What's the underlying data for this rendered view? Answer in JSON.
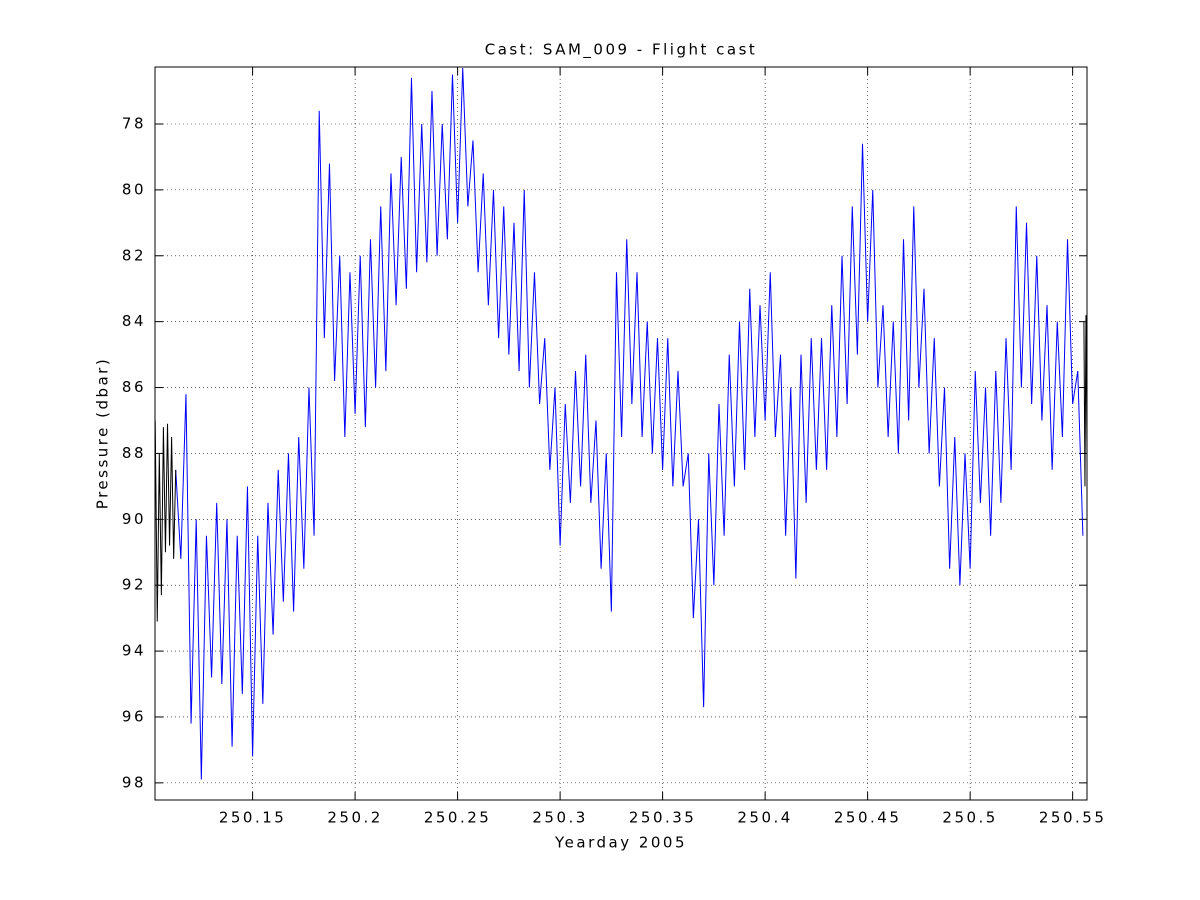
{
  "chart_data": {
    "type": "line",
    "title": "Cast: SAM_009 - Flight cast",
    "x_label": "Yearday 2005",
    "y_label": "Pressure (dbar)",
    "xlim": [
      250.1024,
      250.557
    ],
    "ylim": [
      76.27,
      98.52
    ],
    "y_reversed": true,
    "grid": true,
    "xticks": [
      250.15,
      250.2,
      250.25,
      250.3,
      250.35,
      250.4,
      250.45,
      250.5,
      250.55
    ],
    "yticks": [
      78,
      80,
      82,
      84,
      86,
      88,
      90,
      92,
      94,
      96,
      98
    ],
    "series": [
      {
        "color": "#0000ff",
        "x": [
          250.1125,
          250.115,
          250.1175,
          250.12,
          250.1225,
          250.125,
          250.1275,
          250.13,
          250.1325,
          250.135,
          250.1375,
          250.14,
          250.1425,
          250.145,
          250.1475,
          250.15,
          250.1525,
          250.155,
          250.1575,
          250.16,
          250.1625,
          250.165,
          250.1675,
          250.17,
          250.1725,
          250.175,
          250.1775,
          250.18,
          250.1825,
          250.185,
          250.1875,
          250.19,
          250.1925,
          250.195,
          250.1975,
          250.2,
          250.2025,
          250.205,
          250.2075,
          250.21,
          250.2125,
          250.215,
          250.2175,
          250.22,
          250.2225,
          250.225,
          250.2275,
          250.23,
          250.2325,
          250.235,
          250.2375,
          250.24,
          250.2425,
          250.245,
          250.2475,
          250.25,
          250.2525,
          250.255,
          250.2575,
          250.26,
          250.2625,
          250.265,
          250.2675,
          250.27,
          250.2725,
          250.275,
          250.2775,
          250.28,
          250.2825,
          250.285,
          250.2875,
          250.29,
          250.2925,
          250.295,
          250.2975,
          250.3,
          250.3025,
          250.305,
          250.3075,
          250.31,
          250.3125,
          250.315,
          250.3175,
          250.32,
          250.3225,
          250.325,
          250.3275,
          250.33,
          250.3325,
          250.335,
          250.3375,
          250.34,
          250.3425,
          250.345,
          250.3475,
          250.35,
          250.3525,
          250.355,
          250.3575,
          250.36,
          250.3625,
          250.365,
          250.3675,
          250.37,
          250.3725,
          250.375,
          250.3775,
          250.38,
          250.3825,
          250.385,
          250.3875,
          250.39,
          250.3925,
          250.395,
          250.3975,
          250.4,
          250.4025,
          250.405,
          250.4075,
          250.41,
          250.4125,
          250.415,
          250.4175,
          250.42,
          250.4225,
          250.425,
          250.4275,
          250.43,
          250.4325,
          250.435,
          250.4375,
          250.44,
          250.4425,
          250.445,
          250.4475,
          250.45,
          250.4525,
          250.455,
          250.4575,
          250.46,
          250.4625,
          250.465,
          250.4675,
          250.47,
          250.4725,
          250.475,
          250.4775,
          250.48,
          250.4825,
          250.485,
          250.4875,
          250.49,
          250.4925,
          250.495,
          250.4975,
          250.5,
          250.5025,
          250.505,
          250.5075,
          250.51,
          250.5125,
          250.515,
          250.5175,
          250.52,
          250.5225,
          250.525,
          250.5275,
          250.53,
          250.5325,
          250.535,
          250.5375,
          250.54,
          250.5425,
          250.545,
          250.5475,
          250.55,
          250.5525,
          250.555
        ],
        "values": [
          88.5,
          91.2,
          86.2,
          96.2,
          90.0,
          97.9,
          90.5,
          94.8,
          89.5,
          95.0,
          90.0,
          96.9,
          90.5,
          95.3,
          89.0,
          97.2,
          90.5,
          95.6,
          89.5,
          93.5,
          88.5,
          92.5,
          88.0,
          92.8,
          87.5,
          91.5,
          86.0,
          90.5,
          77.6,
          84.5,
          79.2,
          85.8,
          82.0,
          87.5,
          82.5,
          86.8,
          82.0,
          87.2,
          81.5,
          86.0,
          80.5,
          85.5,
          79.5,
          83.5,
          79.0,
          83.0,
          76.6,
          82.5,
          78.0,
          82.2,
          77.0,
          82.0,
          78.0,
          81.5,
          76.5,
          81.0,
          76.3,
          80.5,
          78.5,
          82.5,
          79.5,
          83.5,
          80.0,
          84.5,
          80.5,
          85.0,
          81.0,
          85.5,
          80.0,
          86.0,
          82.5,
          86.5,
          84.5,
          88.5,
          86.0,
          90.8,
          86.5,
          89.5,
          85.5,
          89.0,
          85.0,
          89.5,
          87.0,
          91.5,
          88.0,
          92.8,
          82.5,
          87.5,
          81.5,
          86.5,
          82.5,
          87.5,
          84.0,
          88.0,
          84.5,
          88.5,
          84.5,
          89.0,
          85.5,
          89.0,
          88.0,
          93.0,
          90.0,
          95.7,
          88.0,
          92.0,
          86.5,
          90.5,
          85.0,
          89.0,
          84.0,
          88.5,
          83.0,
          87.5,
          83.5,
          87.0,
          82.5,
          87.5,
          85.0,
          90.5,
          86.0,
          91.8,
          85.0,
          89.5,
          84.5,
          88.5,
          84.5,
          88.5,
          83.5,
          87.5,
          82.0,
          86.5,
          80.5,
          85.0,
          78.6,
          84.0,
          80.0,
          86.0,
          83.5,
          87.5,
          84.0,
          88.0,
          81.5,
          87.0,
          80.5,
          86.0,
          83.0,
          88.0,
          84.5,
          89.0,
          86.0,
          91.5,
          87.5,
          92.0,
          88.0,
          91.5,
          85.5,
          89.5,
          86.0,
          90.5,
          85.5,
          89.5,
          84.5,
          88.5,
          80.5,
          86.0,
          81.0,
          86.5,
          82.0,
          87.0,
          83.5,
          88.5,
          84.0,
          87.5,
          81.5,
          86.5,
          85.5,
          90.5
        ]
      },
      {
        "color": "#000000",
        "x": [
          250.1025,
          250.1035,
          250.1045,
          250.1055,
          250.1065,
          250.1075,
          250.1085,
          250.1095,
          250.1105,
          250.1115,
          250.1125,
          250.3,
          250.5555,
          250.556,
          250.5565,
          250.557
        ],
        "values": [
          87.0,
          93.1,
          88.0,
          92.3,
          87.2,
          91.0,
          87.1,
          90.8,
          87.5,
          91.2,
          88.5,
          null,
          84.0,
          89.0,
          83.8,
          88.0
        ]
      }
    ]
  }
}
